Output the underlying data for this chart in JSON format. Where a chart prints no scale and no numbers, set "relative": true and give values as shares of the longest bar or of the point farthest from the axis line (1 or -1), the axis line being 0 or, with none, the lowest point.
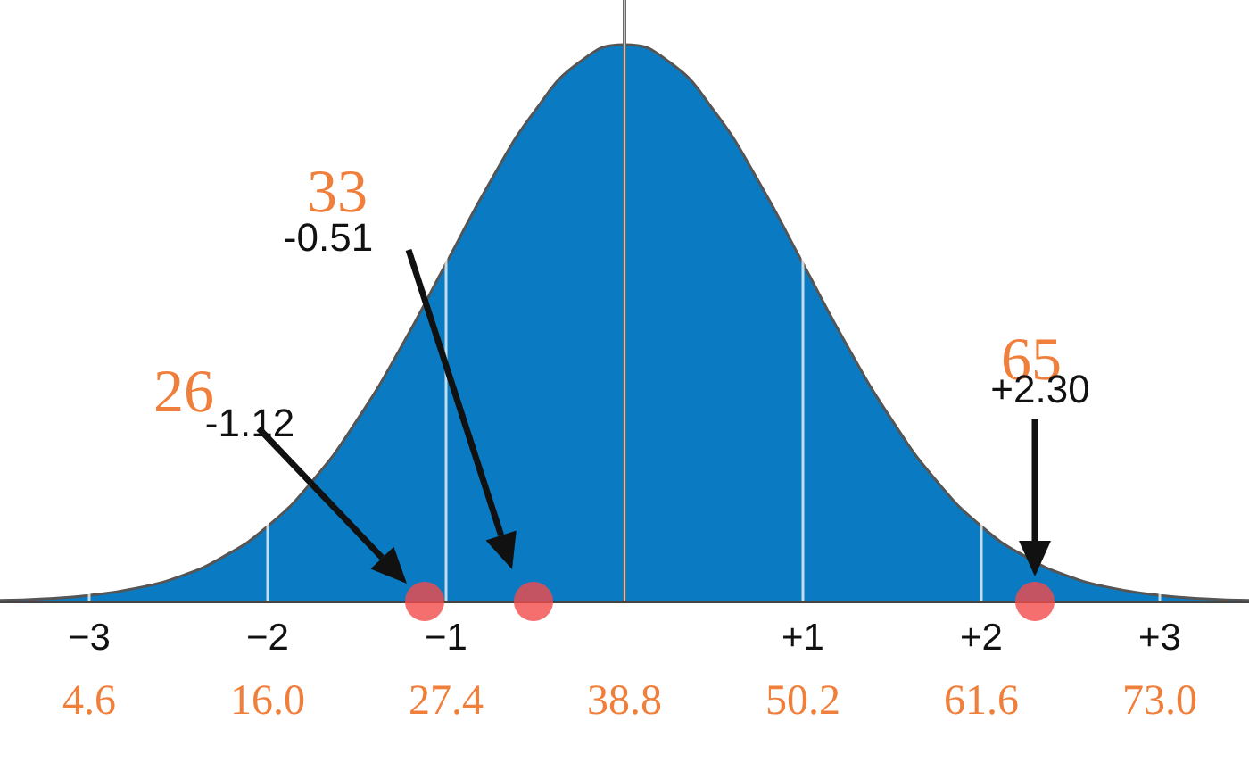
{
  "chart_data": {
    "type": "area",
    "relative": true,
    "x": [
      -3.5,
      -3.25,
      -3,
      -2.75,
      -2.5,
      -2.25,
      -2,
      -1.75,
      -1.5,
      -1.25,
      -1,
      -0.75,
      -0.5,
      -0.25,
      0,
      0.25,
      0.5,
      0.75,
      1,
      1.25,
      1.5,
      1.75,
      2,
      2.25,
      2.5,
      2.75,
      3,
      3.25,
      3.5
    ],
    "series": [
      {
        "color": "#0a7bc2",
        "values": [
          0.002,
          0.005,
          0.011,
          0.023,
          0.044,
          0.08,
          0.135,
          0.216,
          0.325,
          0.458,
          0.607,
          0.755,
          0.882,
          0.969,
          1,
          0.969,
          0.882,
          0.755,
          0.607,
          0.458,
          0.325,
          0.216,
          0.135,
          0.08,
          0.044,
          0.023,
          0.011,
          0.005,
          0.002
        ]
      },
      {
        "type": "scatter",
        "color": "#f44b4b",
        "x": [
          -1.12,
          -0.51,
          2.3
        ],
        "values": [
          0,
          0,
          0
        ]
      }
    ],
    "xlim": [
      -3.5,
      3.5
    ],
    "xticks": [
      {
        "value": -3,
        "label": "−3"
      },
      {
        "value": -2,
        "label": "−2"
      },
      {
        "value": -1,
        "label": "−1"
      },
      {
        "value": 0,
        "label": null
      },
      {
        "value": 1,
        "label": "+1"
      },
      {
        "value": 2,
        "label": "+2"
      },
      {
        "value": 3,
        "label": "+3"
      }
    ],
    "x2lim": [
      -1.1,
      78.7
    ],
    "x2ticks": [
      4.6,
      {
        "value": 16,
        "label": "16.0"
      },
      27.4,
      38.8,
      50.2,
      61.6,
      {
        "value": 73,
        "label": "73.0"
      }
    ],
    "ref_lines": [
      {
        "axis": "x",
        "value": 0,
        "color": "#111111"
      }
    ],
    "annotations": [
      "26",
      "33",
      "65",
      "-1.12",
      "-0.51",
      "+2.30"
    ],
    "grid": "x"
  }
}
